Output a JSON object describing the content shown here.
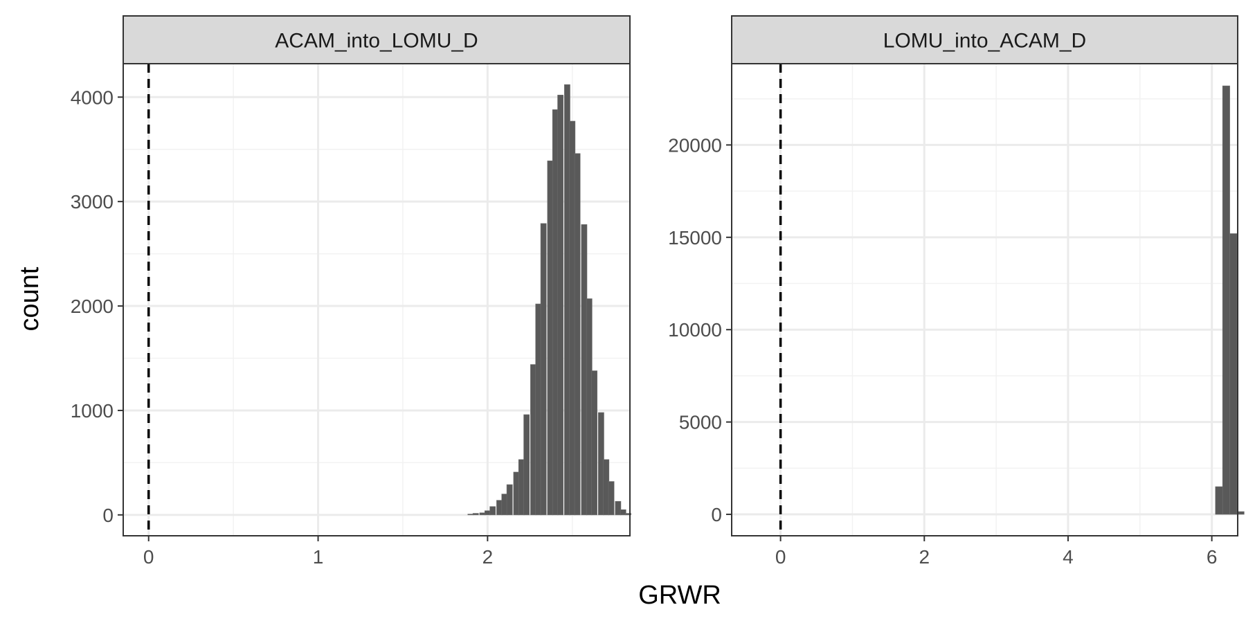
{
  "chart_data": {
    "type": "bar",
    "xlabel": "GRWR",
    "ylabel": "count",
    "reference_line": {
      "x": 0,
      "style": "dashed",
      "color": "#000000"
    },
    "grid": true,
    "theme": "bw",
    "bar_color": "#595959",
    "strip_fill": "#d9d9d9",
    "panels": [
      {
        "facet": "ACAM_into_LOMU_D",
        "xlim": [
          -0.15,
          2.84
        ],
        "ylim": [
          -200,
          4320
        ],
        "x_ticks": [
          0,
          1,
          2
        ],
        "y_ticks": [
          0,
          1000,
          2000,
          3000,
          4000
        ],
        "x_tick_labels": [
          "0",
          "1",
          "2"
        ],
        "y_tick_labels": [
          "0",
          "1000",
          "2000",
          "3000",
          "4000"
        ],
        "bin_width": 0.0333,
        "bins": [
          {
            "x": 1.9,
            "count": 8
          },
          {
            "x": 1.93,
            "count": 15
          },
          {
            "x": 1.97,
            "count": 20
          },
          {
            "x": 2.0,
            "count": 40
          },
          {
            "x": 2.03,
            "count": 80
          },
          {
            "x": 2.07,
            "count": 140
          },
          {
            "x": 2.1,
            "count": 200
          },
          {
            "x": 2.13,
            "count": 290
          },
          {
            "x": 2.17,
            "count": 410
          },
          {
            "x": 2.2,
            "count": 530
          },
          {
            "x": 2.23,
            "count": 960
          },
          {
            "x": 2.27,
            "count": 1440
          },
          {
            "x": 2.3,
            "count": 2020
          },
          {
            "x": 2.33,
            "count": 2790
          },
          {
            "x": 2.37,
            "count": 3390
          },
          {
            "x": 2.4,
            "count": 3880
          },
          {
            "x": 2.43,
            "count": 4020
          },
          {
            "x": 2.47,
            "count": 4120
          },
          {
            "x": 2.5,
            "count": 3770
          },
          {
            "x": 2.53,
            "count": 3460
          },
          {
            "x": 2.57,
            "count": 2780
          },
          {
            "x": 2.6,
            "count": 2070
          },
          {
            "x": 2.63,
            "count": 1380
          },
          {
            "x": 2.67,
            "count": 980
          },
          {
            "x": 2.7,
            "count": 530
          },
          {
            "x": 2.73,
            "count": 320
          },
          {
            "x": 2.77,
            "count": 130
          },
          {
            "x": 2.8,
            "count": 50
          },
          {
            "x": 2.83,
            "count": 15
          }
        ]
      },
      {
        "facet": "LOMU_into_ACAM_D",
        "xlim": [
          -0.68,
          6.36
        ],
        "ylim": [
          -1160,
          24400
        ],
        "x_ticks": [
          0,
          2,
          4,
          6
        ],
        "y_ticks": [
          0,
          5000,
          10000,
          15000,
          20000
        ],
        "x_tick_labels": [
          "0",
          "2",
          "4",
          "6"
        ],
        "y_tick_labels": [
          "0",
          "5000",
          "10000",
          "15000",
          "20000"
        ],
        "bin_width": 0.1,
        "bins": [
          {
            "x": 6.1,
            "count": 1500
          },
          {
            "x": 6.2,
            "count": 23200
          },
          {
            "x": 6.3,
            "count": 15200
          },
          {
            "x": 6.4,
            "count": 150
          }
        ]
      }
    ]
  }
}
